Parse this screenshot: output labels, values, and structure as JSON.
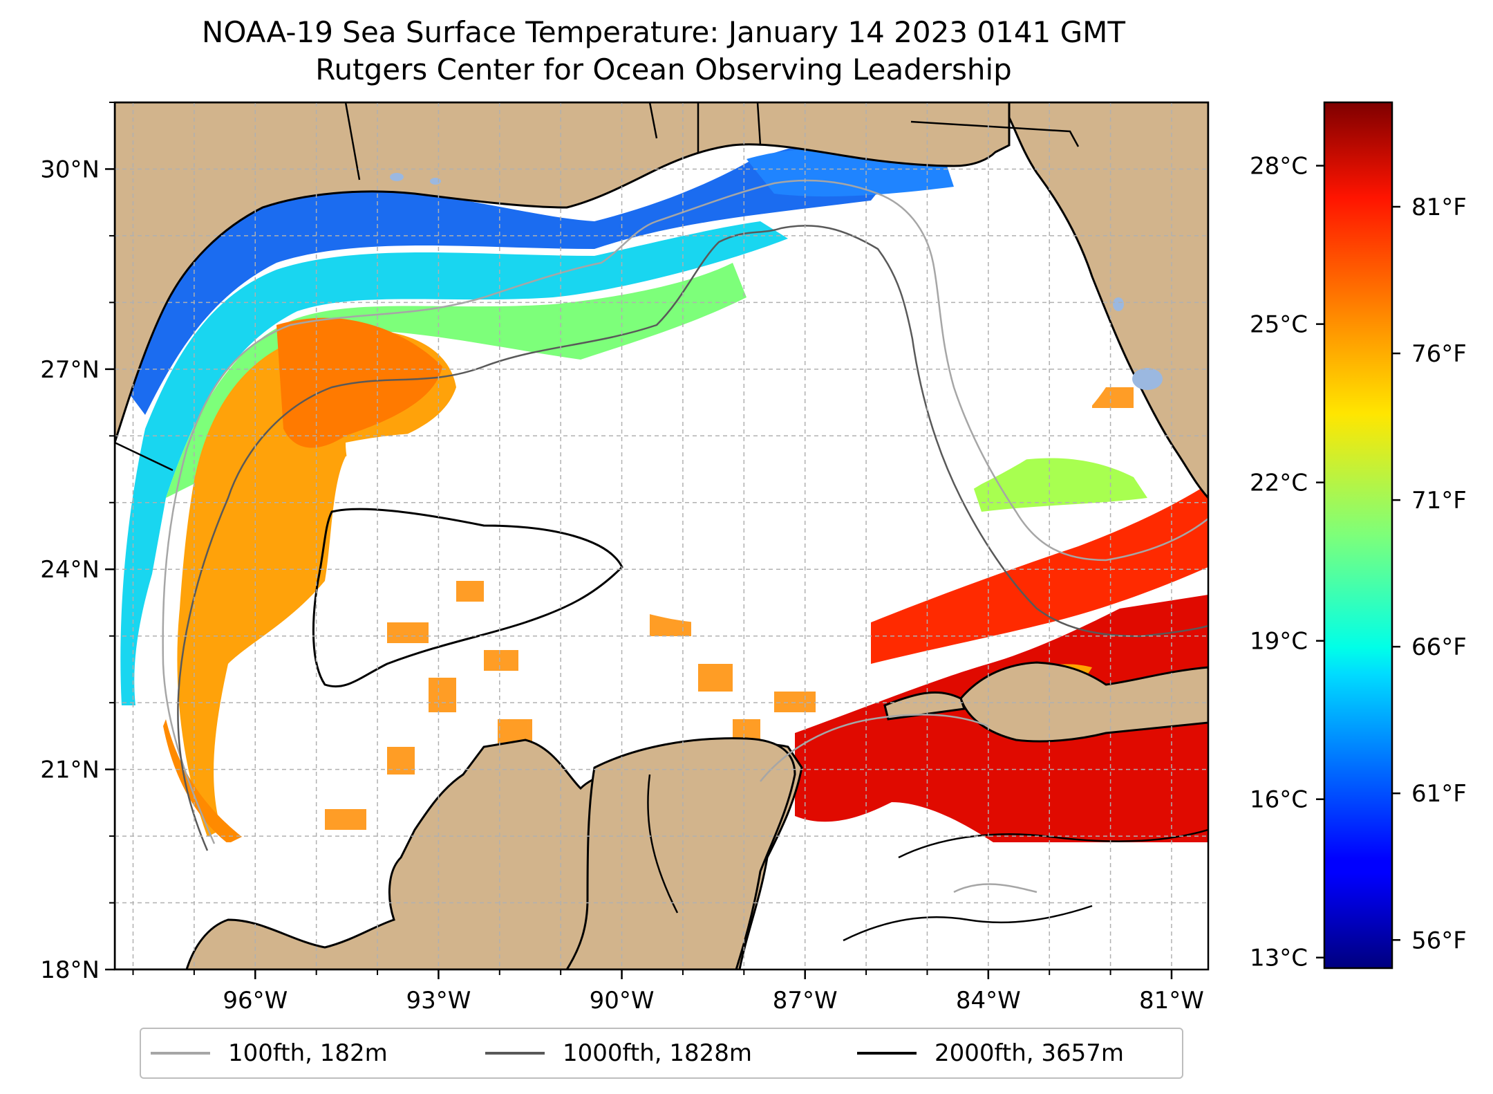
{
  "title": "NOAA-19 Sea Surface Temperature: January 14 2023 0141 GMT",
  "subtitle": "Rutgers Center for Ocean Observing Leadership",
  "map": {
    "lon_range": [
      -98.3,
      -80.4
    ],
    "lat_range": [
      18.0,
      31.0
    ],
    "lat_ticks": [
      {
        "value": 30,
        "label": "30°N"
      },
      {
        "value": 27,
        "label": "27°N"
      },
      {
        "value": 24,
        "label": "24°N"
      },
      {
        "value": 21,
        "label": "21°N"
      },
      {
        "value": 18,
        "label": "18°N"
      }
    ],
    "lon_ticks": [
      {
        "value": -96,
        "label": "96°W"
      },
      {
        "value": -93,
        "label": "93°W"
      },
      {
        "value": -90,
        "label": "90°W"
      },
      {
        "value": -87,
        "label": "87°W"
      },
      {
        "value": -84,
        "label": "84°W"
      },
      {
        "value": -81,
        "label": "81°W"
      }
    ],
    "colors": {
      "land": "#d2b48c",
      "lakes": "#9bb8e0",
      "ocean_no_data": "#ffffff",
      "grid": "#b0b0b0"
    }
  },
  "colorbar": {
    "colormap": "jet",
    "range_c": [
      12.8,
      29.2
    ],
    "celsius_ticks": [
      {
        "value": 28,
        "label": "28°C"
      },
      {
        "value": 25,
        "label": "25°C"
      },
      {
        "value": 22,
        "label": "22°C"
      },
      {
        "value": 19,
        "label": "19°C"
      },
      {
        "value": 16,
        "label": "16°C"
      },
      {
        "value": 13,
        "label": "13°C"
      }
    ],
    "fahrenheit_ticks": [
      {
        "value": 81,
        "label": "81°F"
      },
      {
        "value": 76,
        "label": "76°F"
      },
      {
        "value": 71,
        "label": "71°F"
      },
      {
        "value": 66,
        "label": "66°F"
      },
      {
        "value": 61,
        "label": "61°F"
      },
      {
        "value": 56,
        "label": "56°F"
      }
    ]
  },
  "legend": {
    "items": [
      {
        "label": "100fth, 182m",
        "color": "#a6a6a6"
      },
      {
        "label": "1000fth, 1828m",
        "color": "#595959"
      },
      {
        "label": "2000fth, 3657m",
        "color": "#000000"
      }
    ]
  }
}
